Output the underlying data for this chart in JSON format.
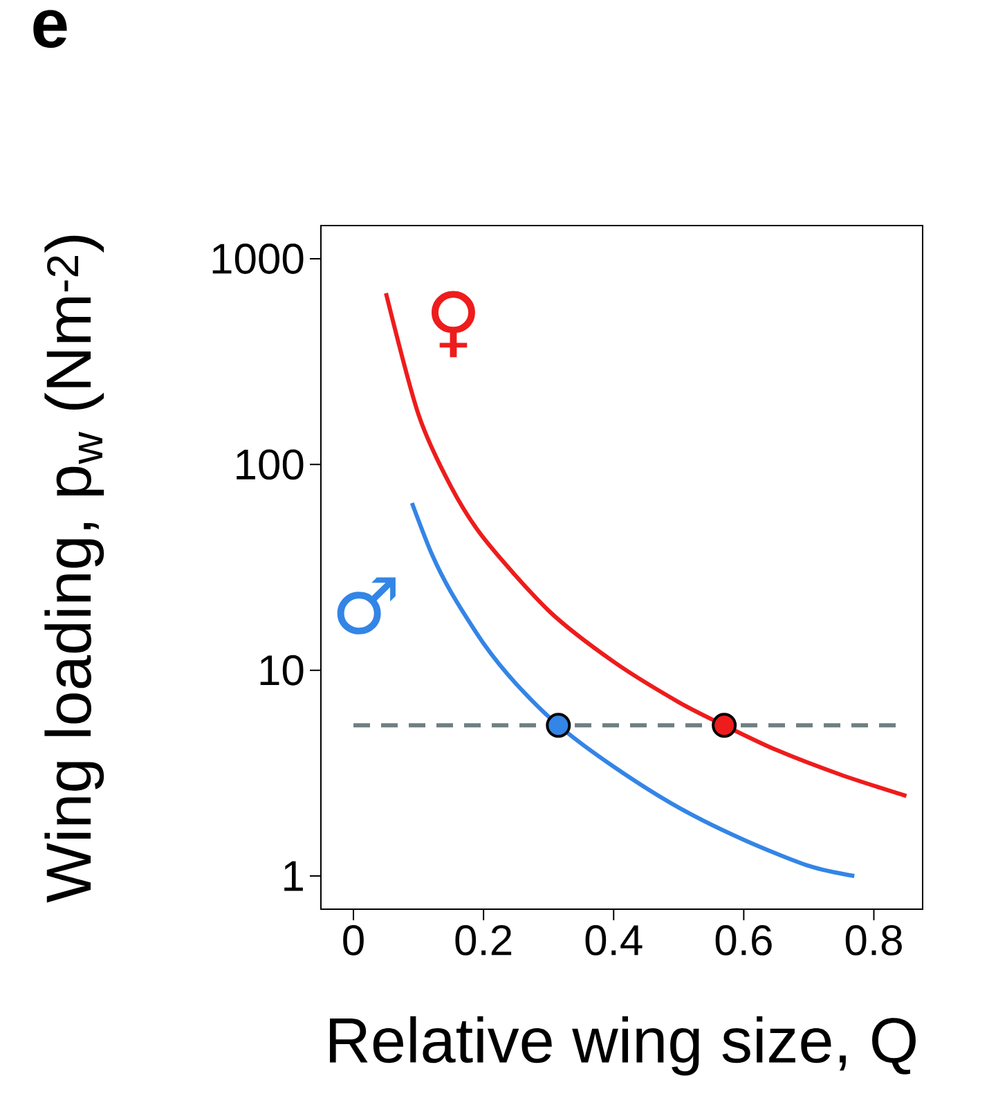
{
  "chart_data": {
    "type": "line",
    "title": "e",
    "xlabel": "Relative wing size, Q",
    "ylabel": "Wing loading, p$_{w}$ (Nm$^{-2}$)",
    "log": "y",
    "grid": false,
    "line_style": "solid",
    "xlim": [
      -0.05,
      0.875
    ],
    "ylim": [
      0.69,
      1450
    ],
    "xticks": [
      0,
      0.2,
      0.4,
      0.6,
      0.8
    ],
    "yticks": [
      1,
      10,
      100,
      1000
    ],
    "ref_lines": [
      {
        "axis": "y",
        "value": 5.4,
        "color": "#6f7f82",
        "line_style": "dashed"
      }
    ],
    "series": [
      {
        "name": "♀",
        "color": "#ee1c1c",
        "x": [
          0.05,
          0.1,
          0.15,
          0.2,
          0.3,
          0.4,
          0.5,
          0.57,
          0.65,
          0.75,
          0.85
        ],
        "values": [
          680,
          175,
          78,
          44,
          19.5,
          11,
          7,
          5.4,
          4.1,
          3.1,
          2.45
        ]
      },
      {
        "name": "♂",
        "color": "#3385e6",
        "x": [
          0.09,
          0.12,
          0.15,
          0.2,
          0.25,
          0.315,
          0.4,
          0.5,
          0.6,
          0.7,
          0.77
        ],
        "values": [
          65,
          37,
          24,
          13.5,
          8.6,
          5.4,
          3.4,
          2.15,
          1.5,
          1.12,
          1.0
        ]
      },
      {
        "type": "scatter",
        "x": [
          0.315,
          0.57
        ],
        "values": [
          5.4,
          5.4
        ],
        "colors": [
          "#3385e6",
          "#ee1c1c"
        ]
      }
    ]
  }
}
